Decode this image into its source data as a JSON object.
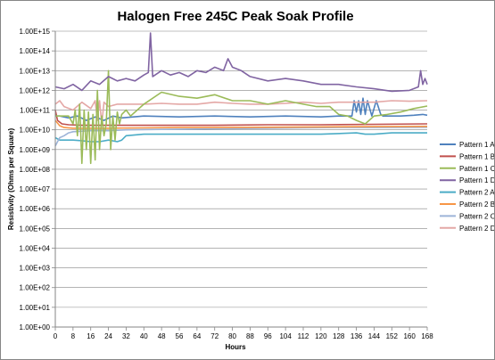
{
  "chart_data": {
    "type": "line",
    "title": "Halogen Free  245C Peak  Soak Profile",
    "xlabel": "Hours",
    "ylabel": "Resistivity (Ohms per Square)",
    "y_scale": "log",
    "xlim": [
      0,
      168
    ],
    "ylim_exponents": [
      0,
      15
    ],
    "grid": "horizontal major gridlines",
    "legend_position": "right",
    "x_tick_labels": [
      "0",
      "8",
      "16",
      "24",
      "32",
      "40",
      "48",
      "56",
      "64",
      "72",
      "80",
      "88",
      "96",
      "104",
      "112",
      "120",
      "128",
      "136",
      "144",
      "152",
      "160",
      "168"
    ],
    "y_tick_labels": [
      "1.00E+00",
      "1.00E+01",
      "1.00E+02",
      "1.00E+03",
      "1.00E+04",
      "1.00E+05",
      "1.00E+06",
      "1.00E+07",
      "1.00E+08",
      "1.00E+09",
      "1.00E+10",
      "1.00E+11",
      "1.00E+12",
      "1.00E+13",
      "1.00E+14",
      "1.00E+15"
    ],
    "series": [
      {
        "name": "Pattern 1 A",
        "color": "#4F81BD",
        "x": [
          0,
          2,
          6,
          10,
          14,
          18,
          22,
          26,
          30,
          40,
          56,
          72,
          88,
          104,
          120,
          128,
          134,
          135,
          136,
          137,
          138,
          139,
          140,
          141,
          143,
          145,
          147,
          148,
          150,
          156,
          162,
          166,
          168
        ],
        "y": [
          50000000000.0,
          50000000000.0,
          40000000000.0,
          50000000000.0,
          30000000000.0,
          45000000000.0,
          30000000000.0,
          50000000000.0,
          40000000000.0,
          50000000000.0,
          45000000000.0,
          50000000000.0,
          45000000000.0,
          50000000000.0,
          45000000000.0,
          50000000000.0,
          50000000000.0,
          300000000000.0,
          80000000000.0,
          300000000000.0,
          60000000000.0,
          400000000000.0,
          60000000000.0,
          300000000000.0,
          50000000000.0,
          300000000000.0,
          60000000000.0,
          50000000000.0,
          50000000000.0,
          50000000000.0,
          55000000000.0,
          60000000000.0,
          55000000000.0
        ]
      },
      {
        "name": "Pattern 1 B",
        "color": "#C0504D",
        "x": [
          0,
          1,
          3,
          6,
          12,
          24,
          48,
          72,
          96,
          120,
          144,
          168
        ],
        "y": [
          100000000000.0,
          30000000000.0,
          20000000000.0,
          18000000000.0,
          17000000000.0,
          17000000000.0,
          17000000000.0,
          17000000000.0,
          18000000000.0,
          18000000000.0,
          19000000000.0,
          20000000000.0
        ]
      },
      {
        "name": "Pattern 1 C",
        "color": "#9BBB59",
        "x": [
          0,
          6,
          8,
          9,
          10,
          11,
          12,
          13,
          14,
          15,
          16,
          17,
          18,
          19,
          20,
          21,
          22,
          23,
          24,
          25,
          26,
          27,
          28,
          29,
          30,
          32,
          34,
          40,
          48,
          56,
          64,
          72,
          80,
          88,
          96,
          104,
          112,
          118,
          124,
          128,
          132,
          136,
          140,
          144,
          150,
          156,
          162,
          168
        ],
        "y": [
          50000000000.0,
          50000000000.0,
          20000000000.0,
          100000000000.0,
          5000000000.0,
          200000000000.0,
          200000000.0,
          100000000000.0,
          1000000000.0,
          80000000000.0,
          200000000.0,
          60000000000.0,
          300000000.0,
          1000000000000.0,
          1000000000.0,
          50000000000.0,
          5000000000.0,
          20000000000.0,
          10000000000000.0,
          1000000000.0,
          50000000000.0,
          3000000000.0,
          80000000000.0,
          20000000000.0,
          60000000000.0,
          100000000000.0,
          50000000000.0,
          200000000000.0,
          800000000000.0,
          500000000000.0,
          400000000000.0,
          600000000000.0,
          300000000000.0,
          300000000000.0,
          200000000000.0,
          300000000000.0,
          200000000000.0,
          150000000000.0,
          150000000000.0,
          60000000000.0,
          50000000000.0,
          30000000000.0,
          20000000000.0,
          50000000000.0,
          60000000000.0,
          80000000000.0,
          120000000000.0,
          160000000000.0
        ]
      },
      {
        "name": "Pattern 1 D",
        "color": "#8064A2",
        "x": [
          0,
          4,
          8,
          12,
          16,
          20,
          24,
          28,
          32,
          36,
          40,
          42,
          43,
          44,
          48,
          52,
          56,
          60,
          64,
          68,
          72,
          76,
          78,
          80,
          84,
          88,
          96,
          104,
          112,
          120,
          128,
          136,
          144,
          152,
          160,
          164,
          165,
          166,
          167,
          168
        ],
        "y": [
          1500000000000.0,
          1200000000000.0,
          2000000000000.0,
          1000000000000.0,
          3000000000000.0,
          2000000000000.0,
          5000000000000.0,
          3000000000000.0,
          4000000000000.0,
          3000000000000.0,
          6000000000000.0,
          8000000000000.0,
          800000000000000.0,
          5000000000000.0,
          10000000000000.0,
          6000000000000.0,
          8000000000000.0,
          5000000000000.0,
          10000000000000.0,
          8000000000000.0,
          15000000000000.0,
          10000000000000.0,
          40000000000000.0,
          15000000000000.0,
          10000000000000.0,
          5000000000000.0,
          3000000000000.0,
          4000000000000.0,
          3000000000000.0,
          2000000000000.0,
          2000000000000.0,
          1500000000000.0,
          1200000000000.0,
          900000000000.0,
          1000000000000.0,
          1500000000000.0,
          10000000000000.0,
          2000000000000.0,
          4000000000000.0,
          2000000000000.0
        ]
      },
      {
        "name": "Pattern 2 A",
        "color": "#4BACC6",
        "x": [
          0,
          2,
          4,
          8,
          12,
          16,
          20,
          24,
          28,
          30,
          32,
          40,
          56,
          72,
          88,
          104,
          120,
          136,
          140,
          144,
          152,
          160,
          168
        ],
        "y": [
          4000000000.0,
          3000000000.0,
          3000000000.0,
          3000000000.0,
          2800000000.0,
          2500000000.0,
          2500000000.0,
          3000000000.0,
          2500000000.0,
          3000000000.0,
          5000000000.0,
          6000000000.0,
          6000000000.0,
          6000000000.0,
          6000000000.0,
          6000000000.0,
          6000000000.0,
          7000000000.0,
          6000000000.0,
          6000000000.0,
          7000000000.0,
          7000000000.0,
          7000000000.0
        ]
      },
      {
        "name": "Pattern 2 B",
        "color": "#F79646",
        "x": [
          0,
          2,
          4,
          8,
          16,
          24,
          40,
          56,
          72,
          96,
          120,
          144,
          168
        ],
        "y": [
          30000000000.0,
          16000000000.0,
          13000000000.0,
          12000000000.0,
          12000000000.0,
          12000000000.0,
          12500000000.0,
          13000000000.0,
          13000000000.0,
          13500000000.0,
          14000000000.0,
          14500000000.0,
          15000000000.0
        ]
      },
      {
        "name": "Pattern 2 C",
        "color": "#9DB4D8",
        "x": [
          0,
          1,
          2,
          4,
          6,
          8,
          16,
          24,
          32,
          48,
          64,
          80,
          96,
          112,
          128,
          144,
          168
        ],
        "y": [
          1500000000.0,
          2500000000.0,
          4000000000.0,
          5000000000.0,
          7000000000.0,
          8000000000.0,
          9000000000.0,
          9000000000.0,
          10000000000.0,
          10500000000.0,
          11000000000.0,
          11500000000.0,
          12000000000.0,
          12500000000.0,
          13000000000.0,
          13000000000.0,
          13500000000.0
        ]
      },
      {
        "name": "Pattern 2 D",
        "color": "#E4A8A6",
        "x": [
          0,
          2,
          4,
          8,
          12,
          16,
          18,
          19,
          20,
          21,
          22,
          24,
          28,
          32,
          40,
          48,
          56,
          64,
          72,
          80,
          88,
          96,
          104,
          112,
          120,
          128,
          136,
          144,
          152,
          160,
          168
        ],
        "y": [
          200000000000.0,
          300000000000.0,
          150000000000.0,
          100000000000.0,
          250000000000.0,
          120000000000.0,
          300000000000.0,
          30000000000.0,
          300000000000.0,
          20000000000.0,
          250000000000.0,
          150000000000.0,
          200000000000.0,
          200000000000.0,
          200000000000.0,
          220000000000.0,
          200000000000.0,
          200000000000.0,
          250000000000.0,
          220000000000.0,
          200000000000.0,
          200000000000.0,
          220000000000.0,
          250000000000.0,
          220000000000.0,
          250000000000.0,
          250000000000.0,
          250000000000.0,
          300000000000.0,
          280000000000.0,
          300000000000.0
        ]
      }
    ]
  }
}
